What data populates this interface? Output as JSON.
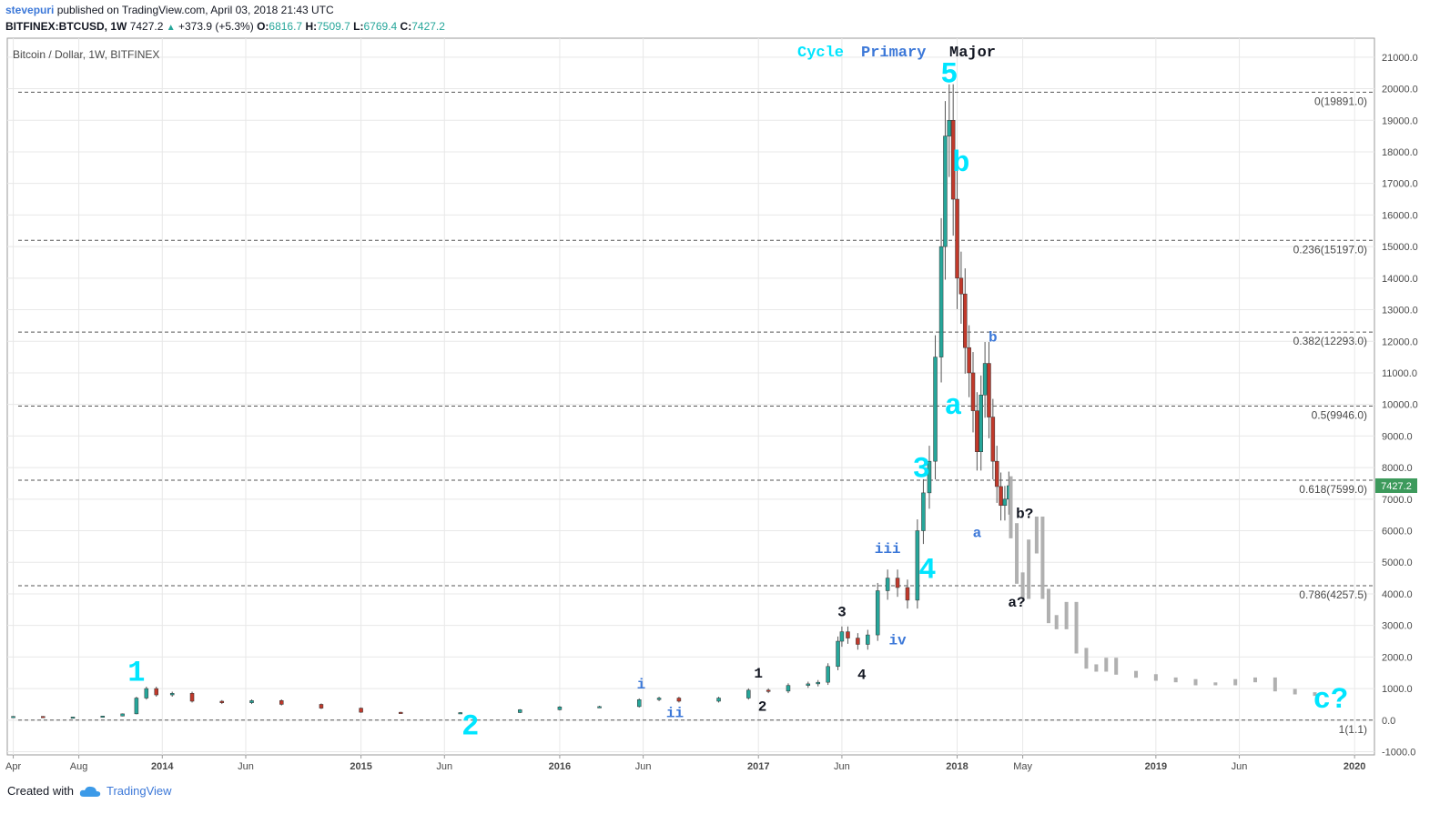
{
  "header": {
    "user": "stevepuri",
    "published_text": "published on TradingView.com, April 03, 2018 21:43 UTC",
    "symbol": "BITFINEX:BTCUSD, 1W",
    "last": "7427.2",
    "change": "+373.9 (+5.3%)",
    "o_label": "O:",
    "o_value": "6816.7",
    "h_label": "H:",
    "h_value": "7509.7",
    "l_label": "L:",
    "l_value": "6769.4",
    "c_label": "C:",
    "c_value": "7427.2"
  },
  "footer": {
    "created_with": "Created with",
    "brand": "TradingView"
  },
  "colors": {
    "up": "#26a69a",
    "down": "#c0392b",
    "cyan": "#00e5ff",
    "blue": "#3c78d8",
    "grid": "#e8e8e8",
    "fib": "#555555",
    "projection": "#b0b0b0",
    "price_tag": "#3d9a5c"
  },
  "chart_data": {
    "type": "line",
    "title": "Bitcoin / Dollar, 1W, BITFINEX",
    "legend": {
      "Cycle": "Cycle",
      "Primary": "Primary",
      "Major": "Major"
    },
    "x_labels": [
      "Apr",
      "Aug",
      "2014",
      "Jun",
      "2015",
      "Jun",
      "2016",
      "Jun",
      "2017",
      "Jun",
      "2018",
      "May",
      "2019",
      "Jun",
      "2020"
    ],
    "x_label_dates": [
      2013.25,
      2013.58,
      2014.0,
      2014.42,
      2015.0,
      2015.42,
      2016.0,
      2016.42,
      2017.0,
      2017.42,
      2018.0,
      2018.33,
      2019.0,
      2019.42,
      2020.0
    ],
    "y_ticks": [
      -1000,
      0,
      1000,
      2000,
      3000,
      4000,
      5000,
      6000,
      7000,
      8000,
      9000,
      10000,
      11000,
      12000,
      13000,
      14000,
      15000,
      16000,
      17000,
      18000,
      19000,
      20000,
      21000
    ],
    "ylim": [
      -1100,
      21600
    ],
    "last_price": 7427.2,
    "fib_levels": [
      {
        "label": "0(19891.0)",
        "value": 19891.0
      },
      {
        "label": "0.236(15197.0)",
        "value": 15197.0
      },
      {
        "label": "0.382(12293.0)",
        "value": 12293.0
      },
      {
        "label": "0.5(9946.0)",
        "value": 9946.0
      },
      {
        "label": "0.618(7599.0)",
        "value": 7599.0
      },
      {
        "label": "0.786(4257.5)",
        "value": 4257.5
      },
      {
        "label": "1(1.1)",
        "value": 1.1
      }
    ],
    "price_series": {
      "name": "BTCUSD weekly close",
      "x": [
        2013.25,
        2013.4,
        2013.55,
        2013.7,
        2013.8,
        2013.87,
        2013.92,
        2013.97,
        2014.05,
        2014.15,
        2014.3,
        2014.45,
        2014.6,
        2014.8,
        2015.0,
        2015.2,
        2015.5,
        2015.8,
        2016.0,
        2016.2,
        2016.4,
        2016.5,
        2016.6,
        2016.8,
        2016.95,
        2017.05,
        2017.15,
        2017.25,
        2017.3,
        2017.35,
        2017.4,
        2017.42,
        2017.45,
        2017.5,
        2017.55,
        2017.6,
        2017.65,
        2017.7,
        2017.75,
        2017.8,
        2017.83,
        2017.86,
        2017.89,
        2017.92,
        2017.94,
        2017.96,
        2017.98,
        2018.0,
        2018.02,
        2018.04,
        2018.06,
        2018.08,
        2018.1,
        2018.12,
        2018.14,
        2018.16,
        2018.18,
        2018.2,
        2018.22,
        2018.24,
        2018.26
      ],
      "y": [
        120,
        100,
        100,
        130,
        200,
        700,
        1000,
        800,
        850,
        600,
        550,
        620,
        500,
        380,
        250,
        240,
        240,
        330,
        420,
        430,
        650,
        700,
        600,
        700,
        950,
        920,
        1100,
        1150,
        1200,
        1700,
        2500,
        2800,
        2600,
        2400,
        2700,
        4100,
        4500,
        4200,
        3800,
        6000,
        7200,
        8200,
        11500,
        15000,
        18500,
        19000,
        16500,
        14000,
        13500,
        11800,
        11000,
        9800,
        8500,
        10300,
        11300,
        9600,
        8200,
        7400,
        6800,
        7000,
        7427.2
      ]
    },
    "projection_series": {
      "name": "Projection",
      "x": [
        2018.27,
        2018.3,
        2018.33,
        2018.36,
        2018.4,
        2018.43,
        2018.46,
        2018.5,
        2018.55,
        2018.6,
        2018.65,
        2018.7,
        2018.75,
        2018.8,
        2018.9,
        2019.0,
        2019.1,
        2019.2,
        2019.3,
        2019.4,
        2019.5,
        2019.6,
        2019.7,
        2019.8
      ],
      "y": [
        6000,
        4500,
        4000,
        5500,
        6200,
        4000,
        3200,
        3000,
        3600,
        2200,
        1700,
        1600,
        1900,
        1500,
        1400,
        1300,
        1250,
        1150,
        1150,
        1250,
        1300,
        950,
        850,
        800
      ]
    },
    "wave_labels": [
      {
        "text": "1",
        "x": 2013.87,
        "y": 1250,
        "color": "cyan",
        "size": "big"
      },
      {
        "text": "2",
        "x": 2015.55,
        "y": -450,
        "color": "cyan",
        "size": "big"
      },
      {
        "text": "3",
        "x": 2017.82,
        "y": 7700,
        "color": "cyan",
        "size": "big"
      },
      {
        "text": "4",
        "x": 2017.85,
        "y": 4500,
        "color": "cyan",
        "size": "big"
      },
      {
        "text": "5",
        "x": 2017.96,
        "y": 20200,
        "color": "cyan",
        "size": "big"
      },
      {
        "text": "a",
        "x": 2017.98,
        "y": 9700,
        "color": "cyan",
        "size": "big"
      },
      {
        "text": "b",
        "x": 2018.02,
        "y": 17400,
        "color": "cyan",
        "size": "big"
      },
      {
        "text": "c?",
        "x": 2019.88,
        "y": 400,
        "color": "cyan",
        "size": "big"
      },
      {
        "text": "i",
        "x": 2016.41,
        "y": 1000,
        "color": "blue",
        "size": "small"
      },
      {
        "text": "ii",
        "x": 2016.58,
        "y": 100,
        "color": "blue",
        "size": "small"
      },
      {
        "text": "iii",
        "x": 2017.65,
        "y": 5300,
        "color": "blue",
        "size": "small"
      },
      {
        "text": "iv",
        "x": 2017.7,
        "y": 2400,
        "color": "blue",
        "size": "small"
      },
      {
        "text": "a",
        "x": 2018.1,
        "y": 5800,
        "color": "blue",
        "size": "small"
      },
      {
        "text": "b",
        "x": 2018.18,
        "y": 12000,
        "color": "blue",
        "size": "small"
      },
      {
        "text": "1",
        "x": 2017.0,
        "y": 1350,
        "color": "black",
        "size": "small"
      },
      {
        "text": "2",
        "x": 2017.02,
        "y": 300,
        "color": "black",
        "size": "small"
      },
      {
        "text": "3",
        "x": 2017.42,
        "y": 3300,
        "color": "black",
        "size": "small"
      },
      {
        "text": "4",
        "x": 2017.52,
        "y": 1300,
        "color": "black",
        "size": "small"
      },
      {
        "text": "a?",
        "x": 2018.3,
        "y": 3600,
        "color": "black",
        "size": "small"
      },
      {
        "text": "b?",
        "x": 2018.34,
        "y": 6400,
        "color": "black",
        "size": "small"
      }
    ],
    "grid": true,
    "xlim": [
      2013.22,
      2020.1
    ]
  }
}
